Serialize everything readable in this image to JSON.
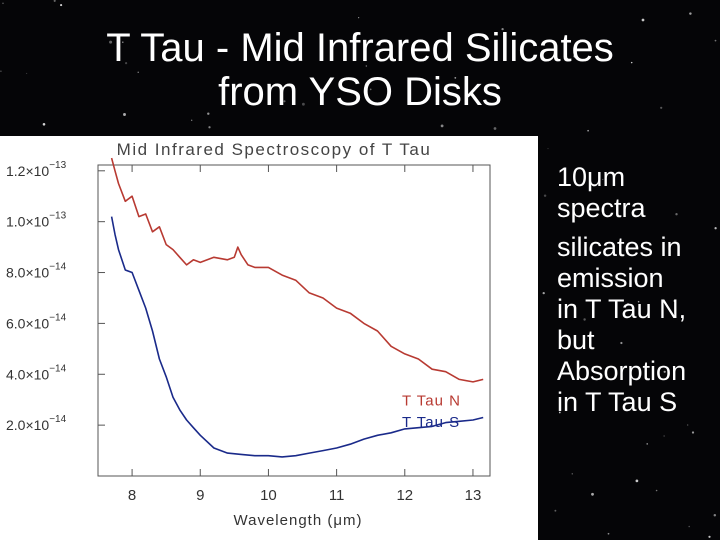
{
  "slide": {
    "title_line1": "T Tau - Mid Infrared Silicates",
    "title_line2": "from YSO Disks"
  },
  "bullets": [
    {
      "lines": [
        "10μm",
        "spectra"
      ]
    },
    {
      "lines": [
        "silicates in",
        "emission",
        "in T Tau N,",
        "but",
        "Absorption",
        "in T Tau S"
      ]
    }
  ],
  "colors": {
    "background": "#050507",
    "series_north": "#b83a32",
    "series_south": "#1a2a8a",
    "axis": "#555555"
  },
  "chart_data": {
    "type": "line",
    "title": "Mid Infrared Spectroscopy of T Tau",
    "xlabel": "Wavelength (μm)",
    "ylabel": "",
    "xlim": [
      7.5,
      13.25
    ],
    "ylim": [
      0,
      1.27e-13
    ],
    "x_ticks": [
      {
        "value": 8,
        "label": "8"
      },
      {
        "value": 9,
        "label": "9"
      },
      {
        "value": 10,
        "label": "10"
      },
      {
        "value": 11,
        "label": "11"
      },
      {
        "value": 12,
        "label": "12"
      },
      {
        "value": 13,
        "label": "13"
      }
    ],
    "y_ticks": [
      {
        "value": 1.2e-13,
        "mantissa": "1.2×10",
        "exponent": "−13"
      },
      {
        "value": 1e-13,
        "mantissa": "1.0×10",
        "exponent": "−13"
      },
      {
        "value": 8e-14,
        "mantissa": "8.0×10",
        "exponent": "−14"
      },
      {
        "value": 6e-14,
        "mantissa": "6.0×10",
        "exponent": "−14"
      },
      {
        "value": 4e-14,
        "mantissa": "4.0×10",
        "exponent": "−14"
      },
      {
        "value": 2e-14,
        "mantissa": "2.0×10",
        "exponent": "−14"
      }
    ],
    "grid": false,
    "series": [
      {
        "name": "T Tau N",
        "color": "#b83a32",
        "x": [
          7.7,
          7.75,
          7.8,
          7.9,
          8.0,
          8.1,
          8.2,
          8.3,
          8.4,
          8.5,
          8.6,
          8.7,
          8.8,
          8.9,
          9.0,
          9.2,
          9.4,
          9.5,
          9.55,
          9.6,
          9.7,
          9.8,
          9.9,
          10.0,
          10.2,
          10.4,
          10.6,
          10.8,
          11.0,
          11.2,
          11.4,
          11.6,
          11.8,
          12.0,
          12.2,
          12.4,
          12.6,
          12.8,
          13.0,
          13.15
        ],
        "y": [
          1.25e-13,
          1.2e-13,
          1.15e-13,
          1.08e-13,
          1.1e-13,
          1.02e-13,
          1.03e-13,
          9.6e-14,
          9.8e-14,
          9.1e-14,
          8.9e-14,
          8.6e-14,
          8.3e-14,
          8.5e-14,
          8.4e-14,
          8.6e-14,
          8.5e-14,
          8.6e-14,
          9e-14,
          8.7e-14,
          8.3e-14,
          8.2e-14,
          8.2e-14,
          8.2e-14,
          7.9e-14,
          7.7e-14,
          7.2e-14,
          7e-14,
          6.6e-14,
          6.4e-14,
          6e-14,
          5.7e-14,
          5.1e-14,
          4.8e-14,
          4.6e-14,
          4.2e-14,
          4.1e-14,
          3.8e-14,
          3.7e-14,
          3.8e-14
        ]
      },
      {
        "name": "T Tau S",
        "color": "#1a2a8a",
        "x": [
          7.7,
          7.75,
          7.8,
          7.9,
          8.0,
          8.1,
          8.2,
          8.3,
          8.4,
          8.5,
          8.6,
          8.7,
          8.8,
          8.9,
          9.0,
          9.2,
          9.4,
          9.6,
          9.8,
          10.0,
          10.2,
          10.4,
          10.6,
          10.8,
          11.0,
          11.2,
          11.4,
          11.6,
          11.8,
          12.0,
          12.2,
          12.4,
          12.6,
          12.8,
          13.0,
          13.15
        ],
        "y": [
          1.02e-13,
          9.5e-14,
          8.9e-14,
          8.1e-14,
          8e-14,
          7.3e-14,
          6.6e-14,
          5.7e-14,
          4.6e-14,
          3.9e-14,
          3.1e-14,
          2.6e-14,
          2.2e-14,
          1.9e-14,
          1.6e-14,
          1.1e-14,
          9e-15,
          8.5e-15,
          8e-15,
          8e-15,
          7.5e-15,
          8e-15,
          9e-15,
          1e-14,
          1.1e-14,
          1.25e-14,
          1.45e-14,
          1.6e-14,
          1.7e-14,
          1.85e-14,
          1.9e-14,
          1.95e-14,
          2.1e-14,
          2.15e-14,
          2.2e-14,
          2.3e-14
        ]
      }
    ]
  }
}
